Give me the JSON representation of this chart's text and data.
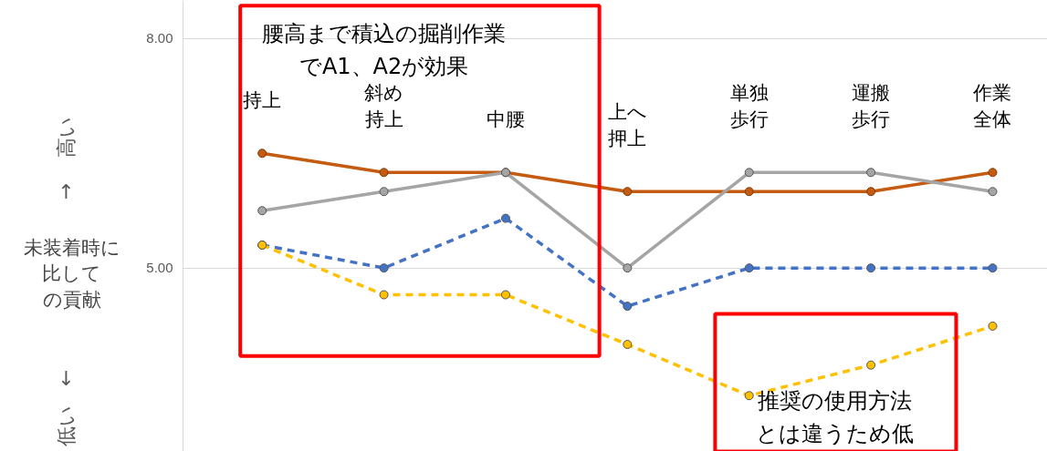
{
  "chart_data": {
    "type": "line",
    "ylabel": "未装着時に比しての貢献",
    "categories": [
      "持上",
      "斜め持上",
      "中腰",
      "上へ押上",
      "単独歩行",
      "運搬歩行",
      "作業全体"
    ],
    "series": [
      {
        "color": "#c55a11",
        "line_style": "solid",
        "values": [
          6.5,
          6.25,
          6.25,
          6.0,
          6.0,
          6.0,
          6.25
        ]
      },
      {
        "color": "#a5a5a5",
        "line_style": "solid",
        "values": [
          5.75,
          6.0,
          6.25,
          5.0,
          6.25,
          6.25,
          6.0
        ]
      },
      {
        "color": "#4472c4",
        "line_style": "dashed",
        "values": [
          5.3,
          5.0,
          5.65,
          4.5,
          5.0,
          5.0,
          5.0
        ]
      },
      {
        "color": "#ffc000",
        "line_style": "dashed",
        "values": [
          5.3,
          4.65,
          4.65,
          4.0,
          3.33,
          3.73,
          4.24
        ]
      }
    ],
    "ylim": [
      2.6,
      8.5
    ],
    "yticks": [
      {
        "value": 5,
        "label": "5.00"
      },
      {
        "value": 8,
        "label": "8.00"
      }
    ],
    "grid": "y",
    "marker": "circle",
    "tick_labels": "y",
    "annotations": [
      "腰高まで積込の掘削作業でA1、A2が効果",
      "推奨の使用方法とは違うため低",
      "高い",
      "↑",
      "↓",
      "低い"
    ]
  }
}
